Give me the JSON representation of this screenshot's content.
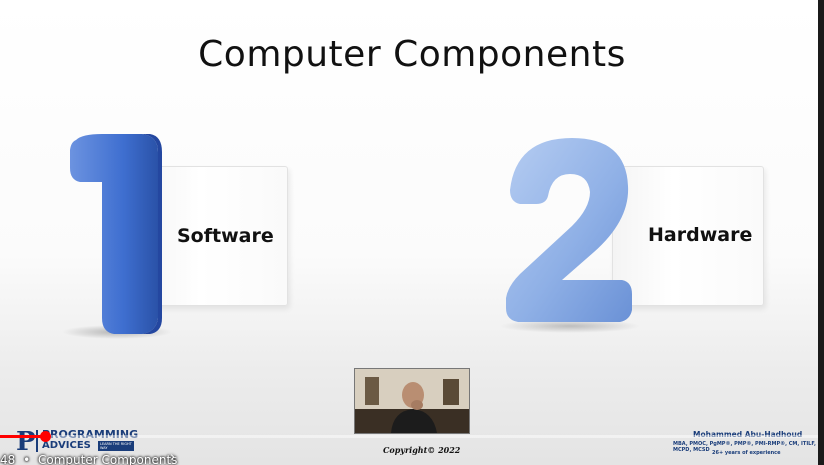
{
  "slide": {
    "title": "Computer Components",
    "items": [
      {
        "number": "1",
        "label": "Software"
      },
      {
        "number": "2",
        "label": "Hardware"
      }
    ],
    "copyright": "Copyright© 2022"
  },
  "branding": {
    "logo_top": "PROGRAMMING",
    "logo_bottom": "ADVICES",
    "logo_tag": "LEARN THE RIGHT WAY",
    "author_name": "Mohammed Abu-Hadhoud",
    "author_credentials": "MBA, PMOC, PgMP®, PMP®, PMI-RMP®, CM, ITILF, MCPD, MCSD",
    "author_experience": "26+ years of experience"
  },
  "player": {
    "chapter_time": "48",
    "chapter_separator": "•",
    "chapter_title": "Computer Components",
    "chapter_chevron": "›",
    "progress_fraction": 0.055
  },
  "colors": {
    "numeral_one": "#3f6fd0",
    "numeral_two": "#8fb0e6",
    "progress": "#ff0000",
    "brand_blue": "#1a3d7a"
  },
  "icons": [
    "presenter-video-icon",
    "programming-advices-logo-icon",
    "chevron-right-icon"
  ]
}
